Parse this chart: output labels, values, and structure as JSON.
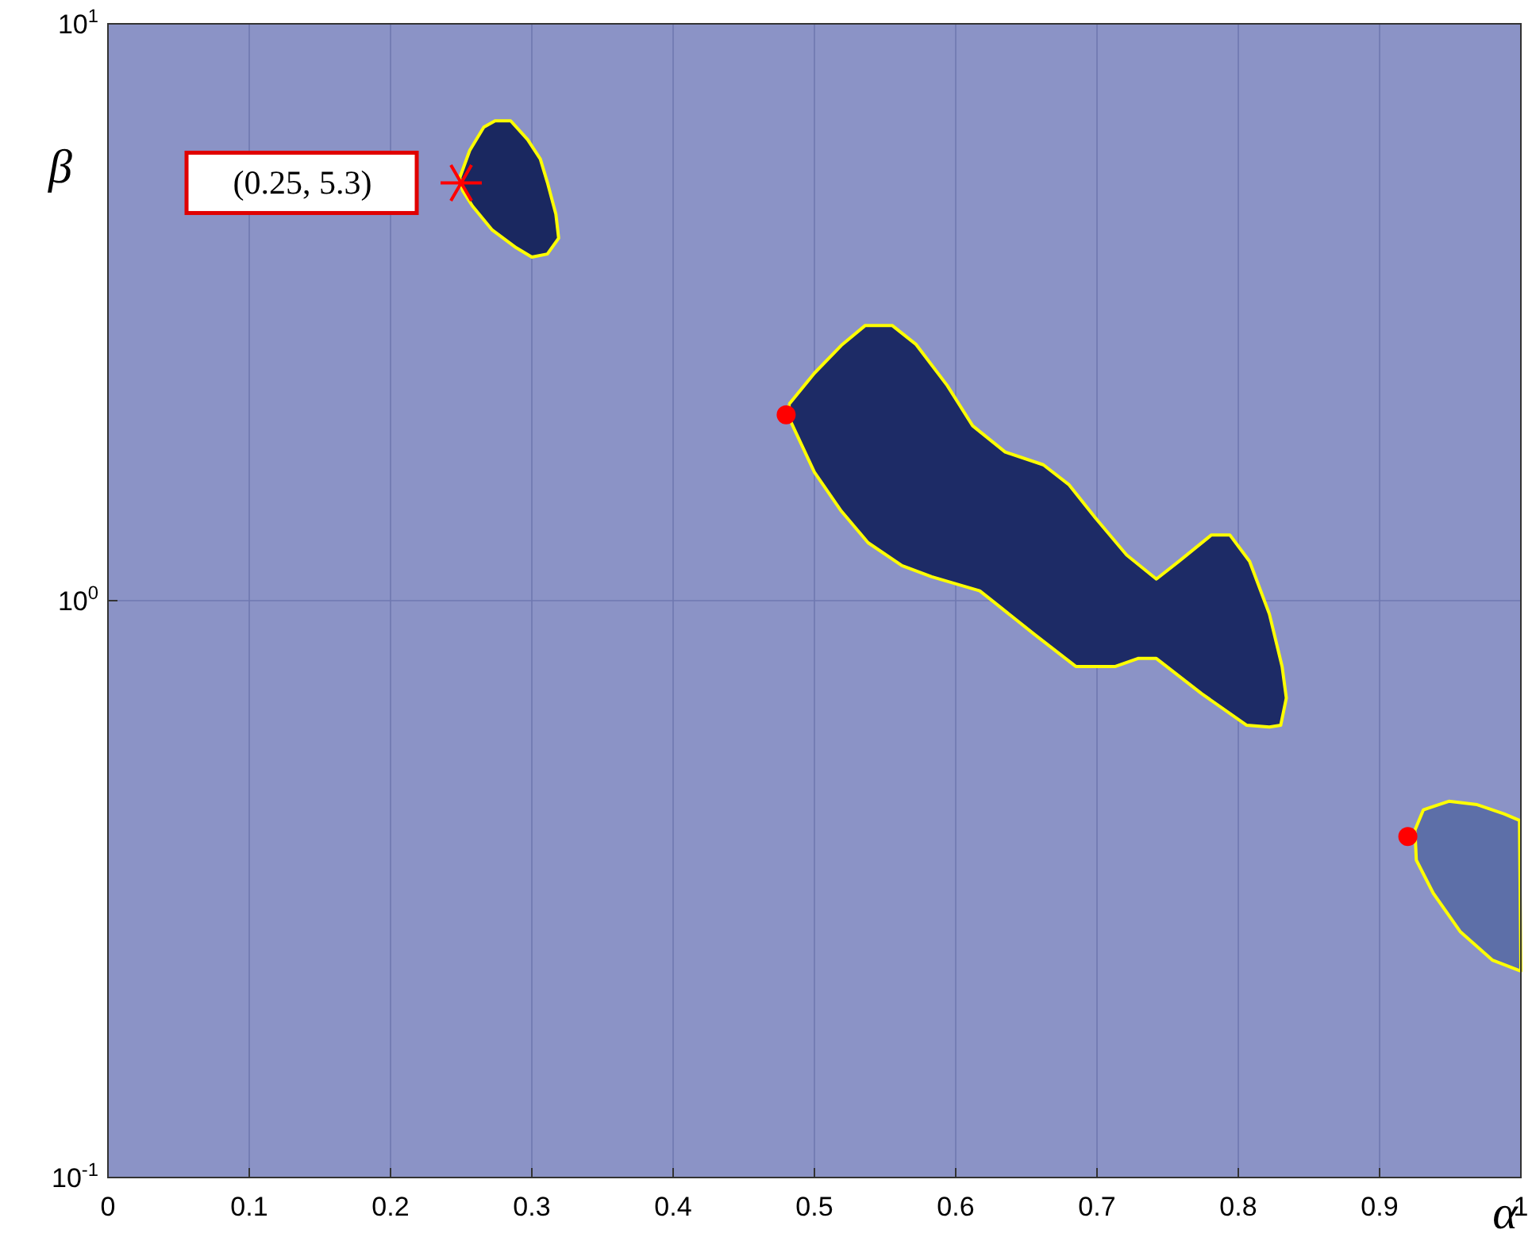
{
  "chart_data": {
    "type": "area",
    "xlabel": "α",
    "ylabel": "β",
    "log": "y",
    "grid": true,
    "xlim": [
      0,
      1
    ],
    "ylim": [
      0.1,
      10
    ],
    "xticks": [
      0,
      0.1,
      0.2,
      0.3,
      0.4,
      0.5,
      0.6,
      0.7,
      0.8,
      0.9,
      1
    ],
    "yticks": [
      {
        "value": 0.1,
        "label": "10$^{-1}$"
      },
      {
        "value": 1,
        "label": "10$^{0}$"
      },
      {
        "value": 10,
        "label": "10$^{1}$"
      }
    ],
    "series": [
      {
        "color": "#ffff00",
        "line_style": "solid",
        "x": [
          0.249,
          0.256,
          0.266,
          0.274,
          0.285,
          0.297,
          0.306,
          0.311,
          0.317,
          0.319,
          0.311,
          0.3,
          0.289,
          0.272,
          0.258,
          0.251,
          0.249
        ],
        "values": [
          5.41,
          6.03,
          6.62,
          6.79,
          6.79,
          6.3,
          5.83,
          5.31,
          4.68,
          4.25,
          3.99,
          3.94,
          4.09,
          4.39,
          4.83,
          5.14,
          5.41
        ]
      },
      {
        "color": "#ffff00",
        "line_style": "solid",
        "x": [
          0.482,
          0.5,
          0.519,
          0.536,
          0.555,
          0.572,
          0.594,
          0.612,
          0.635,
          0.662,
          0.68,
          0.699,
          0.721,
          0.742,
          0.758,
          0.781,
          0.794,
          0.808,
          0.822,
          0.831,
          0.834,
          0.83,
          0.822,
          0.806,
          0.774,
          0.742,
          0.729,
          0.713,
          0.685,
          0.656,
          0.631,
          0.617,
          0.583,
          0.562,
          0.538,
          0.519,
          0.5,
          0.483,
          0.482
        ],
        "values": [
          2.19,
          2.48,
          2.77,
          3.0,
          3.0,
          2.78,
          2.36,
          2.01,
          1.81,
          1.72,
          1.59,
          1.39,
          1.2,
          1.09,
          1.17,
          1.3,
          1.3,
          1.17,
          0.948,
          0.769,
          0.678,
          0.608,
          0.604,
          0.608,
          0.69,
          0.794,
          0.794,
          0.769,
          0.769,
          0.873,
          0.977,
          1.04,
          1.1,
          1.15,
          1.26,
          1.43,
          1.67,
          2.05,
          2.19
        ]
      },
      {
        "color": "#ffff00",
        "line_style": "solid",
        "x": [
          0.925,
          0.931,
          0.949,
          0.969,
          0.988,
          0.999,
          1,
          0.98,
          0.957,
          0.938,
          0.926,
          0.925
        ],
        "values": [
          0.4,
          0.434,
          0.449,
          0.443,
          0.427,
          0.416,
          0.228,
          0.238,
          0.267,
          0.311,
          0.355,
          0.4
        ]
      },
      {
        "type": "scatter",
        "color": "#ff0000",
        "marker": "circle",
        "x": [
          0.48,
          0.92
        ],
        "values": [
          2.1,
          0.39
        ]
      },
      {
        "type": "scatter",
        "color": "#ff0000",
        "marker": "cross",
        "x": [
          0.25
        ],
        "values": [
          5.3
        ]
      }
    ],
    "annotations": [
      {
        "text": "(0.25, 5.3)",
        "x": 0.25,
        "y": 5.3
      }
    ]
  }
}
